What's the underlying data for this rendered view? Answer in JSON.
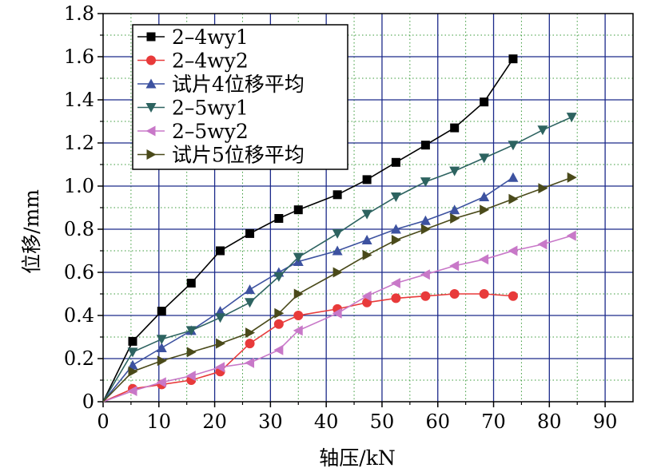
{
  "chart_data": {
    "type": "line",
    "title": "",
    "xlabel": "轴压/kN",
    "ylabel": "位移/mm",
    "xlim": [
      0,
      95
    ],
    "ylim": [
      0,
      1.8
    ],
    "x_ticks": [
      0,
      10,
      20,
      30,
      40,
      50,
      60,
      70,
      80,
      90
    ],
    "x_tick_labels": [
      "0",
      "10",
      "20",
      "30",
      "40",
      "50",
      "60",
      "70",
      "80",
      "90"
    ],
    "y_ticks": [
      0,
      0.2,
      0.4,
      0.6,
      0.8,
      1.0,
      1.2,
      1.4,
      1.6,
      1.8
    ],
    "y_tick_labels": [
      "0",
      "0.2",
      "0.4",
      "0.6",
      "0.8",
      "1.0",
      "1.2",
      "1.4",
      "1.6",
      "1.8"
    ],
    "grid": true,
    "legend_position": "top-left",
    "series": [
      {
        "name": "2–4wy1",
        "color": "#000000",
        "marker": "square",
        "x": [
          0,
          5.3,
          10.5,
          15.8,
          21,
          26.3,
          31.5,
          35,
          42,
          47.3,
          52.5,
          57.8,
          63,
          68.3,
          73.5
        ],
        "y": [
          0,
          0.28,
          0.42,
          0.55,
          0.7,
          0.78,
          0.85,
          0.89,
          0.96,
          1.03,
          1.11,
          1.19,
          1.27,
          1.39,
          1.59
        ]
      },
      {
        "name": "2–4wy2",
        "color": "#e83a3a",
        "marker": "circle",
        "x": [
          0,
          5.3,
          10.5,
          15.8,
          21,
          26.3,
          31.5,
          35,
          42,
          47.3,
          52.5,
          57.8,
          63,
          68.3,
          73.5
        ],
        "y": [
          0,
          0.06,
          0.08,
          0.1,
          0.14,
          0.27,
          0.36,
          0.4,
          0.43,
          0.46,
          0.48,
          0.49,
          0.5,
          0.5,
          0.49
        ]
      },
      {
        "name": "试片4位移平均",
        "color": "#3d52a0",
        "marker": "triangle-up",
        "x": [
          0,
          5.3,
          10.5,
          15.8,
          21,
          26.3,
          31.5,
          35,
          42,
          47.3,
          52.5,
          57.8,
          63,
          68.3,
          73.5
        ],
        "y": [
          0,
          0.17,
          0.25,
          0.33,
          0.42,
          0.52,
          0.6,
          0.65,
          0.7,
          0.75,
          0.8,
          0.84,
          0.89,
          0.95,
          1.04
        ]
      },
      {
        "name": "2–5wy1",
        "color": "#2d6360",
        "marker": "triangle-down",
        "x": [
          0,
          5.3,
          10.5,
          15.8,
          21,
          26.3,
          31.5,
          35,
          42,
          47.3,
          52.5,
          57.8,
          63,
          68.3,
          73.5,
          78.8,
          84
        ],
        "y": [
          0,
          0.23,
          0.29,
          0.33,
          0.39,
          0.46,
          0.58,
          0.67,
          0.78,
          0.87,
          0.95,
          1.02,
          1.07,
          1.13,
          1.19,
          1.26,
          1.32
        ]
      },
      {
        "name": "2–5wy2",
        "color": "#c878c8",
        "marker": "triangle-left",
        "x": [
          0,
          5.3,
          10.5,
          15.8,
          21,
          26.3,
          31.5,
          35,
          42,
          47.3,
          52.5,
          57.8,
          63,
          68.3,
          73.5,
          78.8,
          84
        ],
        "y": [
          0,
          0.05,
          0.09,
          0.12,
          0.16,
          0.18,
          0.24,
          0.33,
          0.41,
          0.49,
          0.55,
          0.59,
          0.63,
          0.66,
          0.7,
          0.73,
          0.77
        ]
      },
      {
        "name": "试片5位移平均",
        "color": "#4a4a1a",
        "marker": "triangle-right",
        "x": [
          0,
          5.3,
          10.5,
          15.8,
          21,
          26.3,
          31.5,
          35,
          42,
          47.3,
          52.5,
          57.8,
          63,
          68.3,
          73.5,
          78.8,
          84
        ],
        "y": [
          0,
          0.14,
          0.19,
          0.23,
          0.27,
          0.32,
          0.41,
          0.5,
          0.6,
          0.68,
          0.75,
          0.8,
          0.85,
          0.89,
          0.94,
          0.99,
          1.04
        ]
      }
    ]
  }
}
